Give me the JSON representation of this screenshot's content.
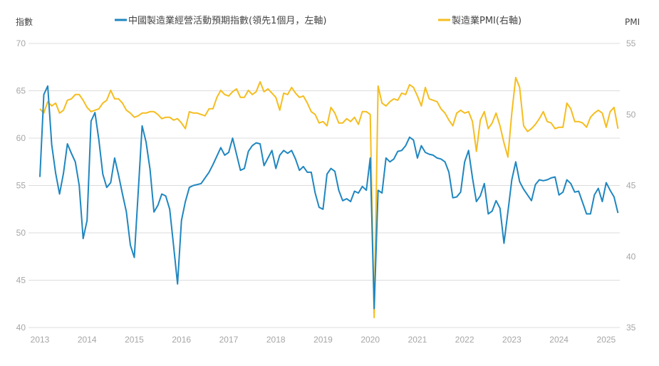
{
  "chart_data": {
    "type": "line",
    "title": "",
    "left_axis_label": "指數",
    "right_axis_label": "PMI",
    "left_ylim": [
      40,
      70
    ],
    "left_ticks": [
      "40",
      "45",
      "50",
      "55",
      "60",
      "65",
      "70"
    ],
    "right_ylim": [
      35,
      55
    ],
    "right_ticks": [
      "35",
      "40",
      "45",
      "50",
      "55"
    ],
    "x_tick_labels": [
      "2013",
      "2014",
      "2015",
      "2016",
      "2017",
      "2018",
      "2019",
      "2020",
      "2021",
      "2022",
      "2023",
      "2024",
      "2025"
    ],
    "x_start": "2013-01",
    "x_frequency": "monthly",
    "grid": true,
    "legend_placement": "top",
    "series": [
      {
        "name": "中國製造業經營活動預期指數(領先1個月，左軸)",
        "axis": "left",
        "color": "#1f86c0",
        "values": [
          55.9,
          64.6,
          65.5,
          59.3,
          56.3,
          54.1,
          56.3,
          59.4,
          58.4,
          57.5,
          55.0,
          49.4,
          51.3,
          61.8,
          62.7,
          59.8,
          56.2,
          54.8,
          55.3,
          57.9,
          56.1,
          54.1,
          52.2,
          48.7,
          47.4,
          54.3,
          61.3,
          59.6,
          56.7,
          52.2,
          52.9,
          54.1,
          53.9,
          52.5,
          48.6,
          44.6,
          51.3,
          53.3,
          54.8,
          55.0,
          55.1,
          55.2,
          55.8,
          56.4,
          57.2,
          58.1,
          59.0,
          58.2,
          58.5,
          60.0,
          58.3,
          56.6,
          56.8,
          58.6,
          59.2,
          59.5,
          59.4,
          57.1,
          57.9,
          58.7,
          56.8,
          58.2,
          58.7,
          58.4,
          58.7,
          57.8,
          56.6,
          57.0,
          56.4,
          56.4,
          54.2,
          52.7,
          52.5,
          56.2,
          56.8,
          56.5,
          54.5,
          53.4,
          53.6,
          53.3,
          54.4,
          54.2,
          54.9,
          54.5,
          57.9,
          42.0,
          54.5,
          54.2,
          57.9,
          57.5,
          57.8,
          58.6,
          58.7,
          59.2,
          60.1,
          59.8,
          57.9,
          59.2,
          58.5,
          58.3,
          58.2,
          57.9,
          57.8,
          57.5,
          56.4,
          53.7,
          53.8,
          54.3,
          57.5,
          58.7,
          55.8,
          53.3,
          53.9,
          55.2,
          52.0,
          52.3,
          53.4,
          52.6,
          48.9,
          52.2,
          55.6,
          57.5,
          55.4,
          54.6,
          54.0,
          53.4,
          55.1,
          55.6,
          55.5,
          55.6,
          55.8,
          55.9,
          54.0,
          54.3,
          55.6,
          55.2,
          54.3,
          54.4,
          53.2,
          52.0,
          52.0,
          54.0,
          54.7,
          53.3,
          55.3,
          54.5,
          53.8,
          52.1
        ]
      },
      {
        "name": "製造業PMI(右軸)",
        "axis": "right",
        "color": "#f5bd1f",
        "values": [
          50.4,
          50.1,
          50.9,
          50.6,
          50.8,
          50.1,
          50.3,
          51.0,
          51.1,
          51.4,
          51.4,
          51.0,
          50.5,
          50.2,
          50.3,
          50.4,
          50.8,
          51.0,
          51.7,
          51.1,
          51.1,
          50.8,
          50.3,
          50.1,
          49.8,
          49.9,
          50.1,
          50.1,
          50.2,
          50.2,
          50.0,
          49.7,
          49.8,
          49.8,
          49.6,
          49.7,
          49.4,
          49.0,
          50.2,
          50.1,
          50.1,
          50.0,
          49.9,
          50.4,
          50.4,
          51.2,
          51.7,
          51.4,
          51.3,
          51.6,
          51.8,
          51.2,
          51.2,
          51.7,
          51.4,
          51.6,
          52.3,
          51.6,
          51.8,
          51.5,
          51.2,
          50.3,
          51.5,
          51.4,
          51.9,
          51.5,
          51.2,
          51.3,
          50.8,
          50.2,
          50.0,
          49.4,
          49.5,
          49.2,
          50.5,
          50.1,
          49.4,
          49.4,
          49.7,
          49.5,
          49.8,
          49.3,
          50.2,
          50.2,
          50.0,
          35.7,
          52.0,
          50.8,
          50.6,
          50.9,
          51.1,
          51.0,
          51.5,
          51.4,
          52.1,
          51.9,
          51.3,
          50.6,
          51.9,
          51.1,
          51.0,
          50.9,
          50.4,
          50.1,
          49.6,
          49.2,
          50.1,
          50.3,
          50.1,
          50.2,
          49.5,
          47.4,
          49.6,
          50.2,
          49.0,
          49.4,
          50.1,
          49.2,
          48.0,
          47.0,
          50.1,
          52.6,
          51.9,
          49.2,
          48.8,
          49.0,
          49.3,
          49.7,
          50.2,
          49.5,
          49.4,
          49.0,
          49.1,
          49.1,
          50.8,
          50.4,
          49.5,
          49.5,
          49.4,
          49.1,
          49.8,
          50.1,
          50.3,
          50.1,
          49.1,
          50.2,
          50.5,
          49.0
        ]
      }
    ]
  }
}
